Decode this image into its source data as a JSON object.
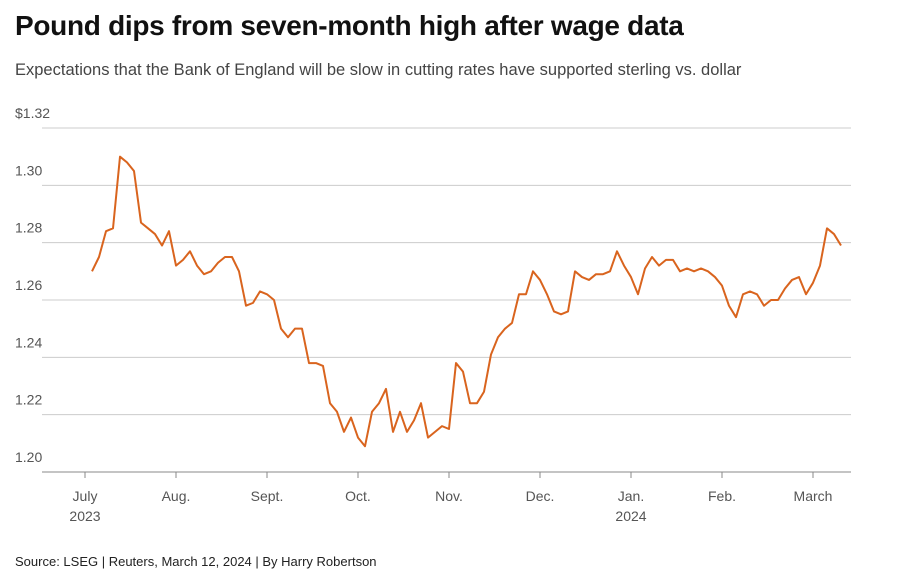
{
  "chart_data": {
    "type": "line",
    "title": "Pound dips from seven-month high after wage data",
    "subtitle": "Expectations that the Bank of England will be slow in cutting rates have supported sterling vs. dollar",
    "source": "Source: LSEG | Reuters, March 12, 2024 | By Harry Robertson",
    "categories": [
      "July 2023",
      null,
      null,
      null,
      null,
      null,
      null,
      null,
      null,
      null,
      null,
      null,
      null,
      "Aug.",
      null,
      null,
      null,
      null,
      null,
      null,
      null,
      null,
      null,
      null,
      null,
      null,
      "Sept.",
      null,
      null,
      null,
      null,
      null,
      null,
      null,
      null,
      null,
      null,
      null,
      null,
      "Oct.",
      null,
      null,
      null,
      null,
      null,
      null,
      null,
      null,
      null,
      null,
      null,
      null,
      "Nov.",
      null,
      null,
      null,
      null,
      null,
      null,
      null,
      null,
      null,
      null,
      null,
      null,
      "Dec.",
      null,
      null,
      null,
      null,
      null,
      null,
      null,
      null,
      null,
      null,
      null,
      null,
      "Jan. 2024",
      null,
      null,
      null,
      null,
      null,
      null,
      null,
      null,
      null,
      null,
      null,
      null,
      "Feb.",
      null,
      null,
      null,
      null,
      null,
      null,
      null,
      null,
      null,
      null,
      null,
      null,
      "March",
      null,
      null,
      null,
      null
    ],
    "series": [
      {
        "color": "#d9641e",
        "values": [
          null,
          1.27,
          1.275,
          1.284,
          1.285,
          1.31,
          1.308,
          1.305,
          1.287,
          1.285,
          1.283,
          1.279,
          1.284,
          1.272,
          1.274,
          1.277,
          1.272,
          1.269,
          1.27,
          1.273,
          1.275,
          1.275,
          1.27,
          1.258,
          1.259,
          1.263,
          1.262,
          1.26,
          1.25,
          1.247,
          1.25,
          1.25,
          1.238,
          1.238,
          1.237,
          1.224,
          1.221,
          1.214,
          1.219,
          1.212,
          1.209,
          1.221,
          1.224,
          1.229,
          1.214,
          1.221,
          1.214,
          1.218,
          1.224,
          1.212,
          1.214,
          1.216,
          1.215,
          1.238,
          1.235,
          1.224,
          1.224,
          1.228,
          1.241,
          1.247,
          1.25,
          1.252,
          1.262,
          1.262,
          1.27,
          1.267,
          1.262,
          1.256,
          1.255,
          1.256,
          1.27,
          1.268,
          1.267,
          1.269,
          1.269,
          1.27,
          1.277,
          1.272,
          1.268,
          1.262,
          1.271,
          1.275,
          1.272,
          1.274,
          1.274,
          1.27,
          1.271,
          1.27,
          1.271,
          1.27,
          1.268,
          1.265,
          1.258,
          1.254,
          1.262,
          1.263,
          1.262,
          1.258,
          1.26,
          1.26,
          1.264,
          1.267,
          1.268,
          1.262,
          1.266,
          1.272,
          1.285,
          1.283,
          1.279
        ]
      }
    ],
    "ylim": [
      1.2,
      1.32
    ],
    "yticks": [
      {
        "value": 1.2,
        "label": "1.20"
      },
      {
        "value": 1.22,
        "label": "1.22"
      },
      {
        "value": 1.24,
        "label": "1.24"
      },
      {
        "value": 1.26,
        "label": "1.26"
      },
      {
        "value": 1.28,
        "label": "1.28"
      },
      {
        "value": 1.3,
        "label": "1.30"
      },
      {
        "value": 1.32,
        "label": "$1.32"
      }
    ],
    "grid": true
  }
}
